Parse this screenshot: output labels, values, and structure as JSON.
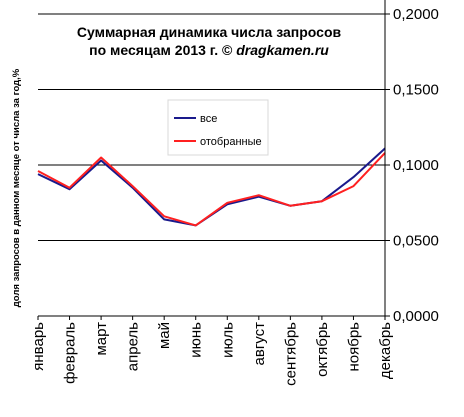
{
  "chart_data": {
    "type": "line",
    "title_line1": "Суммарная динамика числа запросов",
    "title_line2_prefix": "по месяцам 2013 г. ©",
    "title_line2_site": "dragkamen.ru",
    "ylabel": "доля запросов в данном месяце от числа за год,%",
    "ylim": [
      0,
      0.2
    ],
    "y_ticks": [
      0,
      0.05,
      0.1,
      0.15,
      0.2
    ],
    "y_tick_labels": [
      "0,0000",
      "0,0500",
      "0,1000",
      "0,1500",
      "0,2000"
    ],
    "y_axis_side": "right",
    "grid": true,
    "legend_placement": "center",
    "categories": [
      "январь",
      "февраль",
      "март",
      "апрель",
      "май",
      "июнь",
      "июль",
      "август",
      "сентябрь",
      "октябрь",
      "ноябрь",
      "декабрь"
    ],
    "series": [
      {
        "name": "все",
        "color": "#1a1a8c",
        "values": [
          0.094,
          0.084,
          0.103,
          0.085,
          0.064,
          0.06,
          0.074,
          0.079,
          0.073,
          0.076,
          0.092,
          0.111
        ]
      },
      {
        "name": "отобранные",
        "color": "#ff2020",
        "values": [
          0.096,
          0.085,
          0.105,
          0.086,
          0.066,
          0.06,
          0.075,
          0.08,
          0.073,
          0.076,
          0.086,
          0.108
        ]
      }
    ]
  }
}
